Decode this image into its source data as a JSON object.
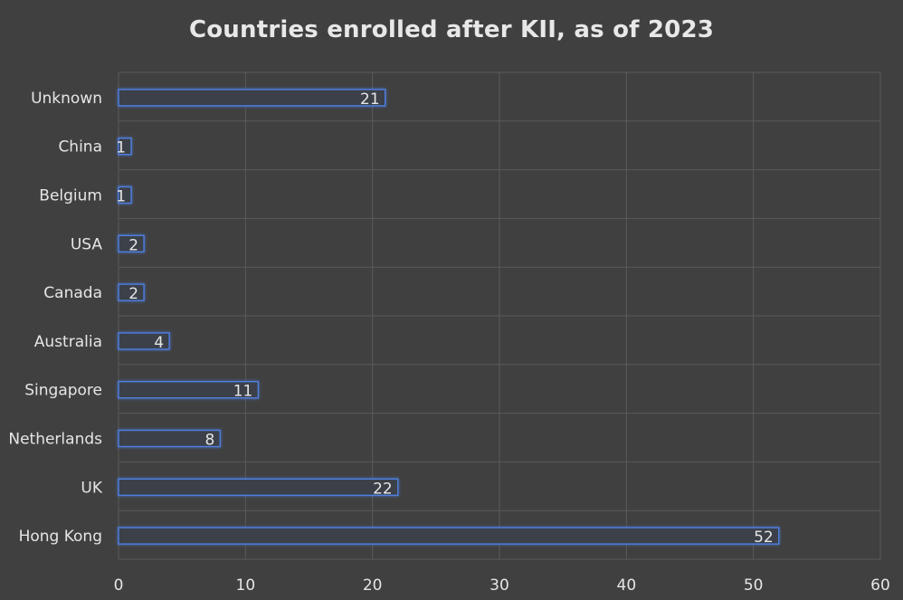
{
  "chart_data": {
    "type": "bar",
    "orientation": "horizontal",
    "title": "Countries enrolled after KII, as of 2023",
    "xlabel": "",
    "ylabel": "",
    "categories": [
      "Hong Kong",
      "UK",
      "Netherlands",
      "Singapore",
      "Australia",
      "Canada",
      "USA",
      "Belgium",
      "China",
      "Unknown"
    ],
    "values": [
      52,
      22,
      8,
      11,
      4,
      2,
      2,
      1,
      1,
      21
    ],
    "xlim": [
      0,
      60
    ],
    "xticks": [
      0,
      10,
      20,
      30,
      40,
      50,
      60
    ],
    "grid": true,
    "legend": "none",
    "colors": {
      "background": "#404040",
      "bar_edge": "#4f7fe0",
      "bar_fill": "#3a3f4a",
      "grid": "#5a5a5a",
      "text": "#e6e6e6"
    }
  }
}
